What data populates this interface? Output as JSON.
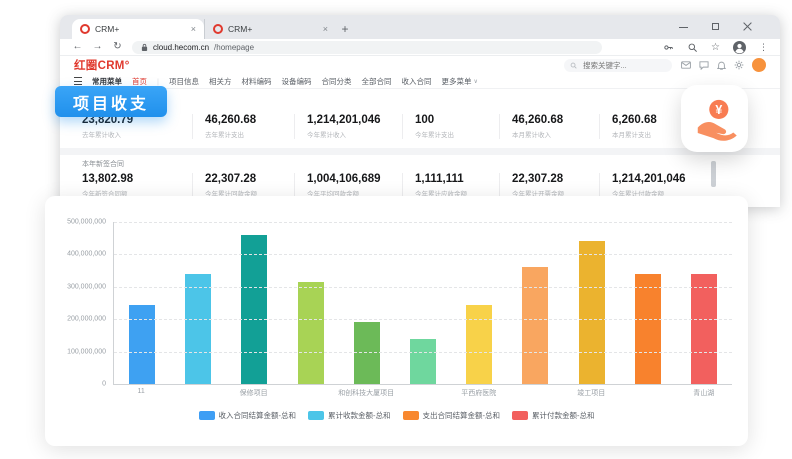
{
  "browser": {
    "tabs": [
      {
        "title": "CRM+"
      },
      {
        "title": "CRM+"
      }
    ],
    "tab_close_glyph": "×",
    "new_tab_glyph": "+",
    "url": {
      "host": "cloud.hecom.cn",
      "path": "/homepage"
    },
    "glyphs": {
      "back": "←",
      "forward": "→",
      "reload": "↻",
      "star": "☆",
      "menu_dots": "⋮"
    }
  },
  "crm": {
    "logo": "红圈CRM°",
    "search_placeholder": "搜索关键字...",
    "nav": {
      "menu_label": "常用菜单",
      "home_label": "首页",
      "separator": "|",
      "items": [
        "项目信息",
        "相关方",
        "材料编码",
        "设备编码",
        "合同分类",
        "全部合同",
        "收入合同"
      ],
      "more_label": "更多菜单",
      "caret": "∨"
    },
    "section1_stats": [
      {
        "value": "23,820.79",
        "label": "去年累计收入"
      },
      {
        "value": "46,260.68",
        "label": "去年累计支出"
      },
      {
        "value": "1,214,201,046",
        "label": "今年累计收入"
      },
      {
        "value": "100",
        "label": "今年累计支出"
      },
      {
        "value": "46,260.68",
        "label": "本月累计收入"
      },
      {
        "value": "6,260.68",
        "label": "本月累计支出"
      }
    ],
    "section2_title": "本年新签合同",
    "section2_stats": [
      {
        "value": "13,802.98",
        "label": "今年新签合同额"
      },
      {
        "value": "22,307.28",
        "label": "今年累计回款金额"
      },
      {
        "value": "1,004,106,689",
        "label": "今年平均回款金额"
      },
      {
        "value": "1,111,111",
        "label": "今年累计应收金额"
      },
      {
        "value": "22,307.28",
        "label": "今年累计开票金额"
      },
      {
        "value": "1,214,201,046",
        "label": "今年累计付款金额"
      }
    ]
  },
  "badge": {
    "label": "项目收支",
    "color_top": "#3aa5f7",
    "color_bottom": "#2090ec"
  },
  "money_icon": {
    "symbol": "¥",
    "color": "#f87c52",
    "color_light": "#f88f60"
  },
  "chart_data": {
    "type": "bar",
    "title": "",
    "categories": [
      "11",
      "",
      "保修项目",
      "",
      "和创科技大厦项目",
      "",
      "平西府医院",
      "",
      "竣工项目",
      "",
      "青山湖"
    ],
    "values": [
      245000000,
      340000000,
      460000000,
      315000000,
      190000000,
      140000000,
      245000000,
      360000000,
      440000000,
      340000000,
      340000000
    ],
    "bar_colors": [
      "#3ea1f2",
      "#4cc5e8",
      "#12a096",
      "#a8d355",
      "#6cba58",
      "#6fd79e",
      "#f8d249",
      "#f9a660",
      "#ebb32f",
      "#f8822d",
      "#f2605e"
    ],
    "xlabel": "",
    "ylabel": "",
    "ylim": [
      0,
      500000000
    ],
    "y_ticks": [
      "500,000,000",
      "400,000,000",
      "300,000,000",
      "200,000,000",
      "100,000,000",
      "0"
    ],
    "grid": "dashed-horizontal",
    "legend_position": "bottom",
    "legend": [
      {
        "label": "收入合同结算金额-总和",
        "color": "#3e9ef4"
      },
      {
        "label": "累计收款金额-总和",
        "color": "#4cc5e8"
      },
      {
        "label": "支出合同结算金额-总和",
        "color": "#f8882f"
      },
      {
        "label": "累计付款金额-总和",
        "color": "#f2605e"
      }
    ]
  }
}
